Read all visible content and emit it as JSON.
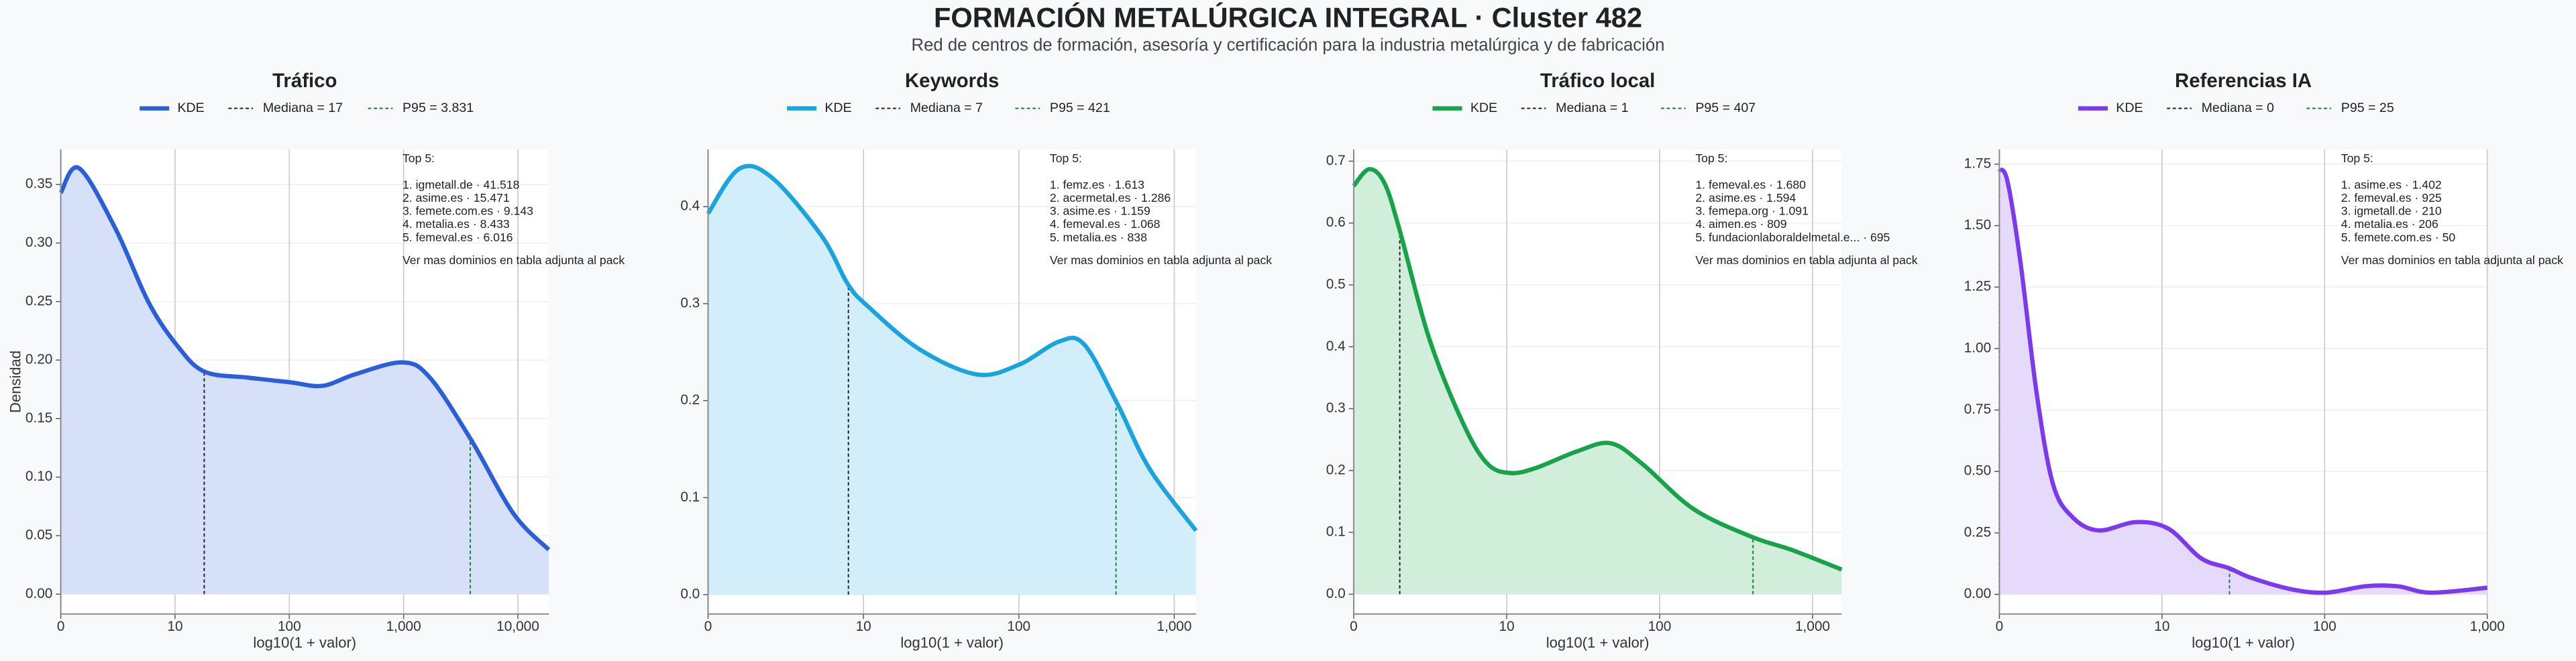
{
  "title": "FORMACIÓN METALÚRGICA INTEGRAL · Cluster 482",
  "subtitle": "Red de centros de formación, asesoría y certificación para la industria metalúrgica y de fabricación",
  "chart_data": [
    {
      "type": "line",
      "title": "Tráfico",
      "xlabel": "log10(1 + valor)",
      "ylabel": "Densidad",
      "x": [
        0,
        0.16,
        0.48,
        0.77,
        1.03,
        1.26,
        1.64,
        2.01,
        2.29,
        2.58,
        2.99,
        3.23,
        3.59,
        3.96,
        4.27
      ],
      "series": [
        {
          "name": "KDE",
          "color": "#2b5fd9",
          "fill": "#d6e0f8",
          "values": [
            0.343,
            0.364,
            0.312,
            0.249,
            0.211,
            0.19,
            0.185,
            0.181,
            0.178,
            0.188,
            0.198,
            0.185,
            0.132,
            0.069,
            0.038
          ]
        }
      ],
      "median": {
        "label": "Mediana = 17",
        "value": 17,
        "color": "#222222"
      },
      "p95": {
        "label": "P95 = 3.831",
        "value": 3831,
        "color": "#1a7f37"
      },
      "top5_title": "Top 5:",
      "top5": [
        "1. igmetall.de · 41.518",
        "2. asime.es · 15.471",
        "3. femete.com.es · 9.143",
        "4. metalia.es · 8.433",
        "5. femeval.es · 6.016"
      ],
      "note": "Ver mas dominios en tabla adjunta al pack",
      "xlim": [
        0,
        4.27
      ],
      "ylim": [
        -0.017,
        0.38
      ],
      "xticks": [
        0,
        {
          "value": 1,
          "label": "10"
        },
        {
          "value": 2,
          "label": "100"
        },
        {
          "value": 3,
          "label": "1,000"
        },
        {
          "value": 4,
          "label": "10,000"
        }
      ],
      "yticks": [
        {
          "value": 0,
          "label": "0.00"
        },
        {
          "value": 0.05,
          "label": "0.05"
        },
        {
          "value": 0.1,
          "label": "0.10"
        },
        {
          "value": 0.15,
          "label": "0.15"
        },
        {
          "value": 0.2,
          "label": "0.20"
        },
        {
          "value": 0.25,
          "label": "0.25"
        },
        {
          "value": 0.3,
          "label": "0.30"
        },
        {
          "value": 0.35,
          "label": "0.35"
        }
      ],
      "grid": true
    },
    {
      "type": "line",
      "title": "Keywords",
      "xlabel": "log10(1 + valor)",
      "x": [
        0,
        0.2,
        0.41,
        0.73,
        0.9,
        1.03,
        1.36,
        1.73,
        2.0,
        2.26,
        2.42,
        2.63,
        2.84,
        3.14
      ],
      "series": [
        {
          "name": "KDE",
          "color": "#1aa3dc",
          "fill": "#d2eefb",
          "values": [
            0.393,
            0.439,
            0.43,
            0.37,
            0.32,
            0.297,
            0.253,
            0.227,
            0.237,
            0.261,
            0.258,
            0.198,
            0.13,
            0.066
          ]
        }
      ],
      "median": {
        "label": "Mediana = 7",
        "value": 7,
        "color": "#222222"
      },
      "p95": {
        "label": "P95 = 421",
        "value": 421,
        "color": "#1a7f37"
      },
      "top5_title": "Top 5:",
      "top5": [
        "1. femz.es · 1.613",
        "2. acermetal.es · 1.286",
        "3. asime.es · 1.159",
        "4. femeval.es · 1.068",
        "5. metalia.es · 838"
      ],
      "note": "Ver mas dominios en tabla adjunta al pack",
      "xlim": [
        0,
        3.14
      ],
      "ylim": [
        -0.02,
        0.459
      ],
      "xticks": [
        0,
        {
          "value": 1,
          "label": "10"
        },
        {
          "value": 2,
          "label": "100"
        },
        {
          "value": 3,
          "label": "1,000"
        }
      ],
      "yticks": [
        {
          "value": 0,
          "label": "0.0"
        },
        {
          "value": 0.1,
          "label": "0.1"
        },
        {
          "value": 0.2,
          "label": "0.2"
        },
        {
          "value": 0.3,
          "label": "0.3"
        },
        {
          "value": 0.4,
          "label": "0.4"
        }
      ],
      "grid": true
    },
    {
      "type": "line",
      "title": "Tráfico local",
      "xlabel": "log10(1 + valor)",
      "x": [
        0,
        0.1,
        0.2,
        0.3,
        0.49,
        0.71,
        0.87,
        1.02,
        1.19,
        1.46,
        1.68,
        1.89,
        2.22,
        2.6,
        2.86,
        3.19
      ],
      "series": [
        {
          "name": "KDE",
          "color": "#16a34a",
          "fill": "#d1eedb",
          "values": [
            0.66,
            0.687,
            0.665,
            0.589,
            0.416,
            0.279,
            0.212,
            0.196,
            0.204,
            0.231,
            0.244,
            0.21,
            0.138,
            0.093,
            0.072,
            0.04
          ]
        }
      ],
      "median": {
        "label": "Mediana = 1",
        "value": 1,
        "color": "#222222"
      },
      "p95": {
        "label": "P95 = 407",
        "value": 407,
        "color": "#1a7f37"
      },
      "top5_title": "Top 5:",
      "top5": [
        "1. femeval.es · 1.680",
        "2. asime.es · 1.594",
        "3. femepa.org · 1.091",
        "4. aimen.es · 809",
        "5. fundacionlaboraldelmetal.e... · 695"
      ],
      "note": "Ver mas dominios en tabla adjunta al pack",
      "xlim": [
        0,
        3.19
      ],
      "ylim": [
        -0.032,
        0.719
      ],
      "xticks": [
        0,
        {
          "value": 1,
          "label": "10"
        },
        {
          "value": 2,
          "label": "100"
        },
        {
          "value": 3,
          "label": "1,000"
        }
      ],
      "yticks": [
        {
          "value": 0,
          "label": "0.0"
        },
        {
          "value": 0.1,
          "label": "0.1"
        },
        {
          "value": 0.2,
          "label": "0.2"
        },
        {
          "value": 0.3,
          "label": "0.3"
        },
        {
          "value": 0.4,
          "label": "0.4"
        },
        {
          "value": 0.5,
          "label": "0.5"
        },
        {
          "value": 0.6,
          "label": "0.6"
        },
        {
          "value": 0.7,
          "label": "0.7"
        }
      ],
      "grid": true
    },
    {
      "type": "line",
      "title": "Referencias IA",
      "xlabel": "log10(1 + valor)",
      "x": [
        0,
        0.05,
        0.13,
        0.23,
        0.33,
        0.45,
        0.61,
        0.84,
        1.04,
        1.24,
        1.41,
        1.55,
        1.8,
        2.01,
        2.25,
        2.45,
        2.65,
        3.0
      ],
      "series": [
        {
          "name": "KDE",
          "color": "#7c3aed",
          "fill": "#e6dafc",
          "values": [
            1.73,
            1.68,
            1.35,
            0.815,
            0.448,
            0.314,
            0.26,
            0.294,
            0.267,
            0.147,
            0.107,
            0.067,
            0.02,
            0.007,
            0.033,
            0.033,
            0.007,
            0.027
          ]
        }
      ],
      "median": {
        "label": "Mediana = 0",
        "value": 0,
        "color": "#222222"
      },
      "p95": {
        "label": "P95 = 25",
        "value": 25,
        "color": "#1a7f37"
      },
      "top5_title": "Top 5:",
      "top5": [
        "1. asime.es · 1.402",
        "2. femeval.es · 925",
        "3. igmetall.de · 210",
        "4. metalia.es · 206",
        "5. femete.com.es · 50"
      ],
      "note": "Ver mas dominios en tabla adjunta al pack",
      "xlim": [
        0,
        3.0
      ],
      "ylim": [
        -0.08,
        1.81
      ],
      "xticks": [
        0,
        {
          "value": 1,
          "label": "10"
        },
        {
          "value": 2,
          "label": "100"
        },
        {
          "value": 3,
          "label": "1,000"
        }
      ],
      "yticks": [
        {
          "value": 0,
          "label": "0.00"
        },
        {
          "value": 0.25,
          "label": "0.25"
        },
        {
          "value": 0.5,
          "label": "0.50"
        },
        {
          "value": 0.75,
          "label": "0.75"
        },
        {
          "value": 1,
          "label": "1.00"
        },
        {
          "value": 1.25,
          "label": "1.25"
        },
        {
          "value": 1.5,
          "label": "1.50"
        },
        {
          "value": 1.75,
          "label": "1.75"
        }
      ],
      "grid": true
    }
  ]
}
